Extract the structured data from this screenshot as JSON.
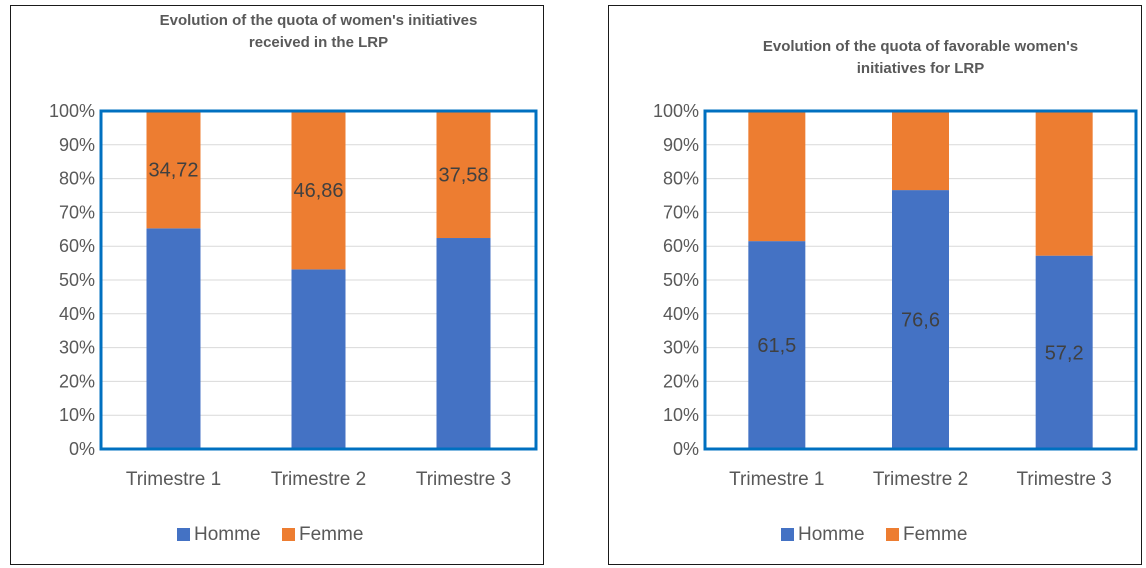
{
  "colors": {
    "homme": "#4472C4",
    "femme": "#ED7D31",
    "plot_border": "#0070C0",
    "grid": "#D9D9D9",
    "text": "#595959"
  },
  "chart_data": [
    {
      "type": "bar",
      "stacked": "percent",
      "title_lines": [
        "Evolution of the quota of women's initiatives",
        "received in the LRP"
      ],
      "categories": [
        "Trimestre 1",
        "Trimestre 2",
        "Trimestre 3"
      ],
      "series": [
        {
          "name": "Homme",
          "values": [
            65.28,
            53.14,
            62.42
          ]
        },
        {
          "name": "Femme",
          "values": [
            34.72,
            46.86,
            37.58
          ]
        }
      ],
      "data_labels": [
        {
          "series": 1,
          "index": 0,
          "text": "34,72"
        },
        {
          "series": 1,
          "index": 1,
          "text": "46,86"
        },
        {
          "series": 1,
          "index": 2,
          "text": "37,58"
        }
      ],
      "yticks": [
        "0%",
        "10%",
        "20%",
        "30%",
        "40%",
        "50%",
        "60%",
        "70%",
        "80%",
        "90%",
        "100%"
      ],
      "ylim": [
        0,
        100
      ],
      "grid": true,
      "legend": "bottom"
    },
    {
      "type": "bar",
      "stacked": "percent",
      "title_lines": [
        "Evolution of the quota of favorable women's",
        "initiatives for LRP"
      ],
      "categories": [
        "Trimestre 1",
        "Trimestre 2",
        "Trimestre 3"
      ],
      "series": [
        {
          "name": "Homme",
          "values": [
            61.5,
            76.6,
            57.2
          ]
        },
        {
          "name": "Femme",
          "values": [
            38.5,
            23.4,
            42.8
          ]
        }
      ],
      "data_labels": [
        {
          "series": 0,
          "index": 0,
          "text": "61,5"
        },
        {
          "series": 0,
          "index": 1,
          "text": "76,6"
        },
        {
          "series": 0,
          "index": 2,
          "text": "57,2"
        }
      ],
      "yticks": [
        "0%",
        "10%",
        "20%",
        "30%",
        "40%",
        "50%",
        "60%",
        "70%",
        "80%",
        "90%",
        "100%"
      ],
      "ylim": [
        0,
        100
      ],
      "grid": true,
      "legend": "bottom"
    }
  ]
}
